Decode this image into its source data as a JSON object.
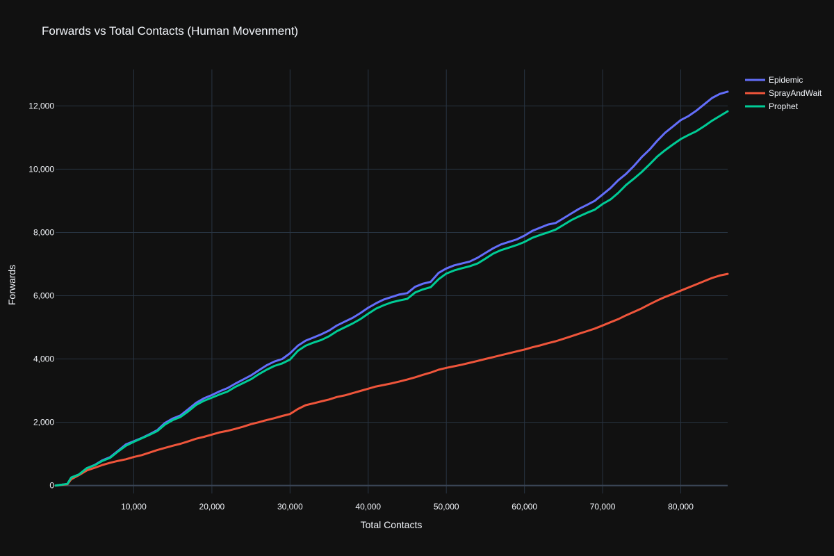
{
  "chart_data": {
    "type": "line",
    "title": "Forwards vs Total Contacts (Human Movenment)",
    "xlabel": "Total Contacts",
    "ylabel": "Forwards",
    "xlim": [
      0,
      86000
    ],
    "ylim": [
      -250,
      13150
    ],
    "xticks": [
      10000,
      20000,
      30000,
      40000,
      50000,
      60000,
      70000,
      80000
    ],
    "xtick_labels": [
      "10,000",
      "20,000",
      "30,000",
      "40,000",
      "50,000",
      "60,000",
      "70,000",
      "80,000"
    ],
    "yticks": [
      0,
      2000,
      4000,
      6000,
      8000,
      10000,
      12000
    ],
    "ytick_labels": [
      "0",
      "2,000",
      "4,000",
      "6,000",
      "8,000",
      "10,000",
      "12,000"
    ],
    "grid": true,
    "legend_position": "top-right",
    "series": [
      {
        "name": "Epidemic",
        "color": "#636efa",
        "x": [
          0,
          1500,
          2000,
          3000,
          4000,
          5000,
          6000,
          7000,
          8000,
          9000,
          10000,
          11000,
          12000,
          13000,
          14000,
          15000,
          16000,
          17000,
          18000,
          19000,
          20000,
          21000,
          22000,
          23000,
          24000,
          25000,
          26000,
          27000,
          28000,
          29000,
          30000,
          31000,
          32000,
          33000,
          34000,
          35000,
          36000,
          37000,
          38000,
          39000,
          40000,
          41000,
          42000,
          43000,
          44000,
          45000,
          46000,
          47000,
          48000,
          49000,
          50000,
          51000,
          52000,
          53000,
          54000,
          55000,
          56000,
          57000,
          58000,
          59000,
          60000,
          61000,
          62000,
          63000,
          64000,
          65000,
          66000,
          67000,
          68000,
          69000,
          70000,
          71000,
          72000,
          73000,
          74000,
          75000,
          76000,
          77000,
          78000,
          79000,
          80000,
          81000,
          82000,
          83000,
          84000,
          85000,
          86000
        ],
        "y": [
          0,
          50,
          250,
          350,
          550,
          650,
          800,
          900,
          1100,
          1300,
          1400,
          1500,
          1620,
          1750,
          1980,
          2120,
          2220,
          2420,
          2620,
          2760,
          2860,
          2980,
          3080,
          3220,
          3350,
          3480,
          3640,
          3800,
          3920,
          4000,
          4180,
          4420,
          4580,
          4680,
          4780,
          4900,
          5060,
          5180,
          5300,
          5450,
          5620,
          5760,
          5880,
          5960,
          6040,
          6080,
          6280,
          6380,
          6440,
          6720,
          6860,
          6960,
          7020,
          7080,
          7200,
          7350,
          7500,
          7620,
          7700,
          7780,
          7900,
          8050,
          8150,
          8250,
          8300,
          8450,
          8600,
          8750,
          8870,
          9000,
          9200,
          9400,
          9650,
          9850,
          10100,
          10380,
          10620,
          10900,
          11150,
          11350,
          11550,
          11680,
          11850,
          12050,
          12250,
          12380,
          12450
        ]
      },
      {
        "name": "SprayAndWait",
        "color": "#ef553b",
        "x": [
          0,
          1500,
          2000,
          3000,
          4000,
          5000,
          6000,
          7000,
          8000,
          9000,
          10000,
          11000,
          12000,
          13000,
          14000,
          15000,
          16000,
          17000,
          18000,
          19000,
          20000,
          21000,
          22000,
          23000,
          24000,
          25000,
          26000,
          27000,
          28000,
          29000,
          30000,
          31000,
          32000,
          33000,
          34000,
          35000,
          36000,
          37000,
          38000,
          39000,
          40000,
          41000,
          42000,
          43000,
          44000,
          45000,
          46000,
          47000,
          48000,
          49000,
          50000,
          51000,
          52000,
          53000,
          54000,
          55000,
          56000,
          57000,
          58000,
          59000,
          60000,
          61000,
          62000,
          63000,
          64000,
          65000,
          66000,
          67000,
          68000,
          69000,
          70000,
          71000,
          72000,
          73000,
          74000,
          75000,
          76000,
          77000,
          78000,
          79000,
          80000,
          81000,
          82000,
          83000,
          84000,
          85000,
          86000
        ],
        "y": [
          0,
          40,
          200,
          330,
          480,
          560,
          650,
          720,
          780,
          830,
          900,
          960,
          1040,
          1120,
          1190,
          1260,
          1320,
          1400,
          1480,
          1540,
          1610,
          1680,
          1730,
          1790,
          1860,
          1940,
          2000,
          2070,
          2130,
          2200,
          2260,
          2420,
          2540,
          2600,
          2660,
          2720,
          2800,
          2850,
          2920,
          2990,
          3060,
          3130,
          3180,
          3230,
          3290,
          3350,
          3420,
          3500,
          3570,
          3660,
          3720,
          3770,
          3820,
          3880,
          3940,
          4000,
          4060,
          4120,
          4180,
          4240,
          4300,
          4370,
          4430,
          4500,
          4560,
          4640,
          4720,
          4800,
          4880,
          4960,
          5060,
          5160,
          5260,
          5380,
          5490,
          5600,
          5730,
          5850,
          5960,
          6060,
          6160,
          6260,
          6360,
          6460,
          6560,
          6640,
          6690
        ]
      },
      {
        "name": "Prophet",
        "color": "#00cc96",
        "x": [
          0,
          1500,
          2000,
          3000,
          4000,
          5000,
          6000,
          7000,
          8000,
          9000,
          10000,
          11000,
          12000,
          13000,
          14000,
          15000,
          16000,
          17000,
          18000,
          19000,
          20000,
          21000,
          22000,
          23000,
          24000,
          25000,
          26000,
          27000,
          28000,
          29000,
          30000,
          31000,
          32000,
          33000,
          34000,
          35000,
          36000,
          37000,
          38000,
          39000,
          40000,
          41000,
          42000,
          43000,
          44000,
          45000,
          46000,
          47000,
          48000,
          49000,
          50000,
          51000,
          52000,
          53000,
          54000,
          55000,
          56000,
          57000,
          58000,
          59000,
          60000,
          61000,
          62000,
          63000,
          64000,
          65000,
          66000,
          67000,
          68000,
          69000,
          70000,
          71000,
          72000,
          73000,
          74000,
          75000,
          76000,
          77000,
          78000,
          79000,
          80000,
          81000,
          82000,
          83000,
          84000,
          85000,
          86000
        ],
        "y": [
          0,
          50,
          250,
          350,
          550,
          640,
          780,
          880,
          1080,
          1260,
          1380,
          1490,
          1600,
          1720,
          1930,
          2070,
          2170,
          2350,
          2550,
          2680,
          2780,
          2880,
          2970,
          3120,
          3240,
          3360,
          3520,
          3660,
          3780,
          3860,
          3980,
          4260,
          4420,
          4520,
          4600,
          4720,
          4880,
          5000,
          5120,
          5260,
          5430,
          5590,
          5700,
          5790,
          5850,
          5900,
          6100,
          6200,
          6270,
          6520,
          6700,
          6800,
          6870,
          6930,
          7020,
          7170,
          7330,
          7440,
          7520,
          7600,
          7700,
          7830,
          7920,
          8000,
          8090,
          8240,
          8390,
          8510,
          8620,
          8720,
          8900,
          9040,
          9250,
          9500,
          9700,
          9910,
          10150,
          10400,
          10600,
          10780,
          10950,
          11080,
          11200,
          11360,
          11530,
          11680,
          11830
        ]
      }
    ]
  }
}
